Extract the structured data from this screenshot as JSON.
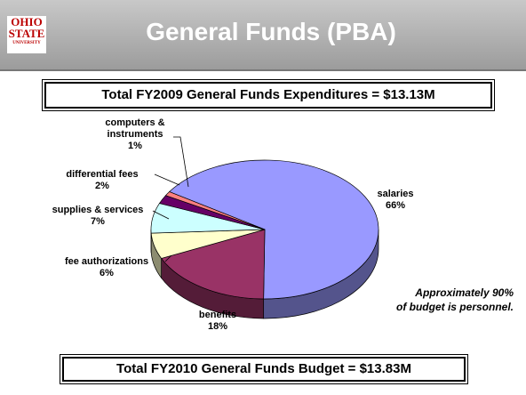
{
  "logo": {
    "line1": "OHIO",
    "line2": "STATE",
    "line3": "UNIVERSITY"
  },
  "chart_data": {
    "type": "pie",
    "title": "General Funds (PBA)",
    "subtitle": "Total FY2009 General Funds Expenditures = $13.13M",
    "categories": [
      "salaries",
      "benefits",
      "fee authorizations",
      "supplies & services",
      "differential fees",
      "computers & instruments"
    ],
    "values": [
      66,
      18,
      6,
      7,
      2,
      1
    ],
    "value_labels": [
      "66%",
      "18%",
      "6%",
      "7%",
      "2%",
      "1%"
    ],
    "colors": [
      "#9999ff",
      "#993366",
      "#ffffcc",
      "#ccffff",
      "#660066",
      "#ff8080"
    ],
    "annotation": [
      "Approximately 90%",
      "of budget is personnel."
    ],
    "footer": "Total FY2010 General Funds Budget = $13.83M"
  }
}
